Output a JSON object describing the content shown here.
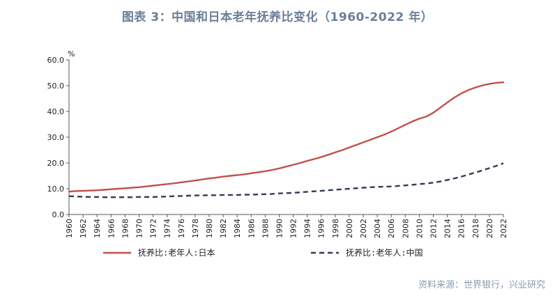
{
  "header": {
    "title": "图表 3：中国和日本老年抚养比变化（1960-2022 年）"
  },
  "footer": {
    "source": "资料来源：世界银行，兴业研究"
  },
  "chart_data": {
    "type": "line",
    "ylabel": "%",
    "ylim": [
      0,
      60
    ],
    "yticks": [
      "0.0",
      "10.0",
      "20.0",
      "30.0",
      "40.0",
      "50.0",
      "60.0"
    ],
    "x": [
      1960,
      1961,
      1962,
      1963,
      1964,
      1965,
      1966,
      1967,
      1968,
      1969,
      1970,
      1971,
      1972,
      1973,
      1974,
      1975,
      1976,
      1977,
      1978,
      1979,
      1980,
      1981,
      1982,
      1983,
      1984,
      1985,
      1986,
      1987,
      1988,
      1989,
      1990,
      1991,
      1992,
      1993,
      1994,
      1995,
      1996,
      1997,
      1998,
      1999,
      2000,
      2001,
      2002,
      2003,
      2004,
      2005,
      2006,
      2007,
      2008,
      2009,
      2010,
      2011,
      2012,
      2013,
      2014,
      2015,
      2016,
      2017,
      2018,
      2019,
      2020,
      2021,
      2022
    ],
    "xticks": [
      "1960",
      "1962",
      "1964",
      "1966",
      "1968",
      "1970",
      "1972",
      "1974",
      "1976",
      "1978",
      "1980",
      "1982",
      "1984",
      "1986",
      "1988",
      "1990",
      "1992",
      "1994",
      "1996",
      "1998",
      "2000",
      "2002",
      "2004",
      "2006",
      "2008",
      "2010",
      "2012",
      "2014",
      "2016",
      "2018",
      "2020",
      "2022"
    ],
    "legend_position": "bottom",
    "series": [
      {
        "name": "抚养比:老年人:日本",
        "color": "#c0504d",
        "style": "solid",
        "values": [
          8.9,
          9.1,
          9.2,
          9.3,
          9.4,
          9.6,
          9.8,
          10.0,
          10.2,
          10.4,
          10.6,
          10.9,
          11.2,
          11.5,
          11.8,
          12.1,
          12.5,
          12.8,
          13.2,
          13.6,
          14.0,
          14.3,
          14.7,
          15.0,
          15.3,
          15.6,
          16.0,
          16.4,
          16.8,
          17.3,
          17.9,
          18.6,
          19.3,
          20.0,
          20.8,
          21.5,
          22.3,
          23.2,
          24.1,
          25.0,
          26.0,
          27.0,
          28.0,
          29.0,
          30.0,
          31.0,
          32.2,
          33.5,
          34.8,
          36.1,
          37.2,
          38.0,
          39.5,
          41.5,
          43.5,
          45.4,
          47.0,
          48.3,
          49.3,
          50.1,
          50.7,
          51.1,
          51.3
        ]
      },
      {
        "name": "抚养比:老年人:中国",
        "color": "#2e3d52",
        "style": "dashed",
        "values": [
          7.1,
          7.0,
          6.9,
          6.8,
          6.8,
          6.7,
          6.7,
          6.7,
          6.7,
          6.7,
          6.8,
          6.8,
          6.8,
          6.9,
          7.0,
          7.1,
          7.2,
          7.3,
          7.4,
          7.4,
          7.5,
          7.5,
          7.6,
          7.6,
          7.6,
          7.7,
          7.7,
          7.8,
          7.9,
          8.0,
          8.2,
          8.3,
          8.4,
          8.6,
          8.8,
          9.0,
          9.2,
          9.4,
          9.6,
          9.8,
          10.0,
          10.2,
          10.4,
          10.6,
          10.7,
          10.8,
          10.9,
          11.1,
          11.3,
          11.5,
          11.8,
          12.0,
          12.4,
          12.8,
          13.4,
          14.0,
          14.7,
          15.5,
          16.3,
          17.1,
          18.0,
          18.9,
          19.9
        ]
      }
    ]
  }
}
